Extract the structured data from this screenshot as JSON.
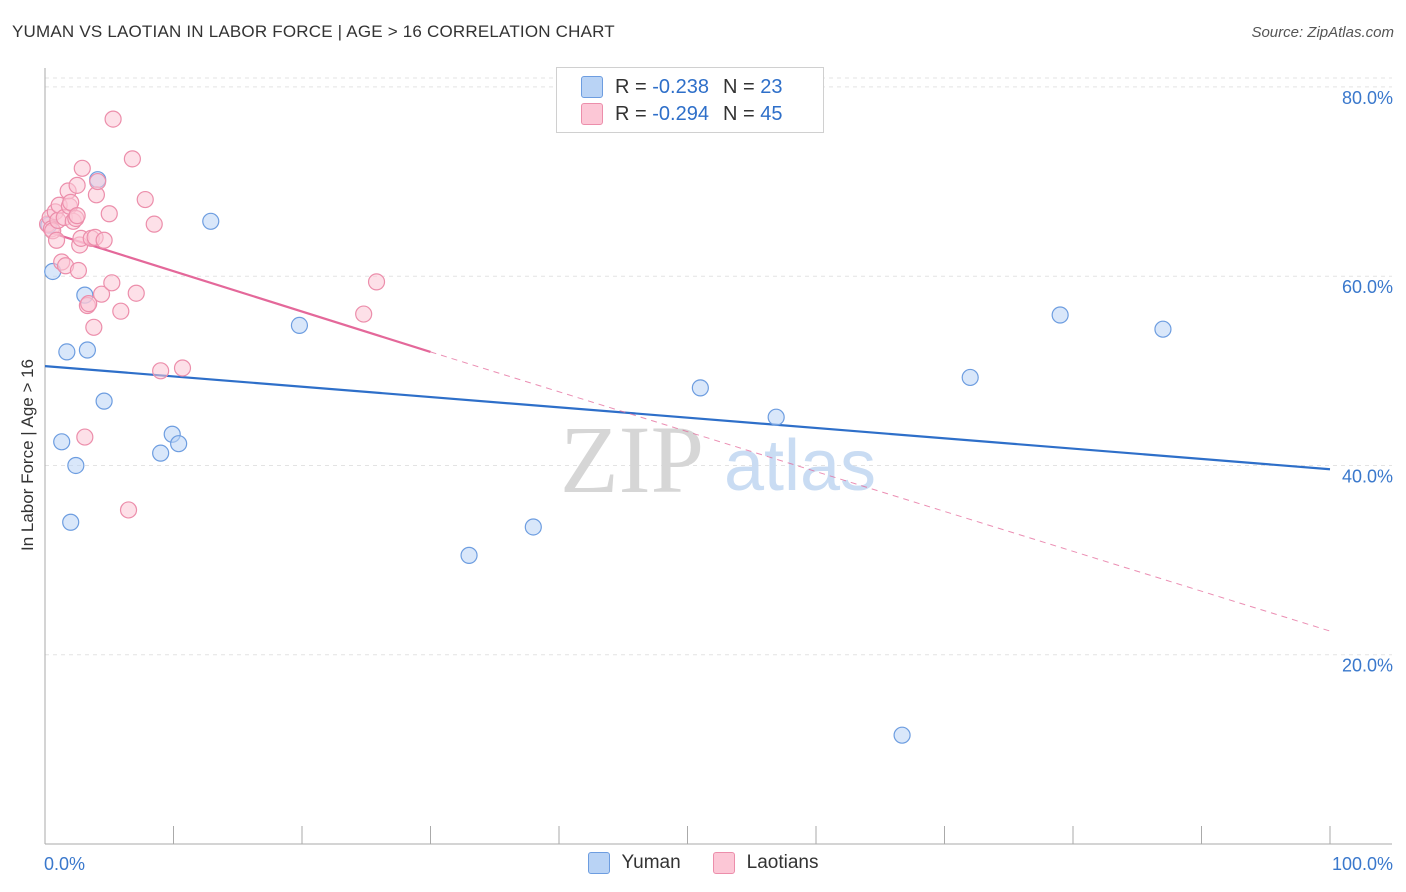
{
  "title": "YUMAN VS LAOTIAN IN LABOR FORCE | AGE > 16 CORRELATION CHART",
  "source": "Source: ZipAtlas.com",
  "watermark": {
    "zip": "ZIP",
    "atlas": "atlas"
  },
  "legend": {
    "r_label": "R =",
    "n_label": "N =",
    "rows": [
      {
        "r": "-0.238",
        "n": "23",
        "fill": "#b9d3f5",
        "stroke": "#6d9de0"
      },
      {
        "r": "-0.294",
        "n": "45",
        "fill": "#fcc7d6",
        "stroke": "#ec8eab"
      }
    ]
  },
  "chart_data": {
    "type": "scatter",
    "title": "YUMAN VS LAOTIAN IN LABOR FORCE | AGE > 16 CORRELATION CHART",
    "xlabel": "",
    "ylabel": "In Labor Force | Age > 16",
    "xlim": [
      0,
      100
    ],
    "ylim": [
      0,
      82
    ],
    "x_tick_labels": [
      "0.0%",
      "100.0%"
    ],
    "y_ticks": [
      20,
      40,
      60,
      80
    ],
    "y_tick_labels": [
      "20.0%",
      "40.0%",
      "60.0%",
      "80.0%"
    ],
    "grid": true,
    "colors": {
      "yuman": "#2e6fc9",
      "laotians": "#e4689a",
      "axis_text": "#3a78cc"
    },
    "series": [
      {
        "name": "Yuman",
        "fill": "#b9d3f5",
        "stroke": "#6d9de0",
        "points": [
          [
            0.6,
            60.5
          ],
          [
            1.3,
            42.5
          ],
          [
            1.7,
            52.0
          ],
          [
            2.0,
            34.0
          ],
          [
            2.4,
            40.0
          ],
          [
            3.1,
            58.0
          ],
          [
            3.3,
            52.2
          ],
          [
            4.1,
            70.2
          ],
          [
            4.6,
            46.8
          ],
          [
            9.0,
            41.3
          ],
          [
            9.9,
            43.3
          ],
          [
            10.4,
            42.3
          ],
          [
            12.9,
            65.8
          ],
          [
            19.8,
            54.8
          ],
          [
            33.0,
            30.5
          ],
          [
            38.0,
            33.5
          ],
          [
            51.0,
            48.2
          ],
          [
            56.9,
            45.1
          ],
          [
            66.7,
            11.5
          ],
          [
            72.0,
            49.3
          ],
          [
            79.0,
            55.9
          ],
          [
            87.0,
            54.4
          ],
          [
            0.3,
            65.4
          ]
        ]
      },
      {
        "name": "Laotians",
        "fill": "#fcc7d6",
        "stroke": "#ec8eab",
        "points": [
          [
            0.2,
            65.5
          ],
          [
            0.4,
            66.2
          ],
          [
            0.5,
            65.0
          ],
          [
            0.6,
            64.8
          ],
          [
            0.8,
            66.8
          ],
          [
            0.9,
            63.8
          ],
          [
            1.0,
            65.9
          ],
          [
            1.1,
            67.5
          ],
          [
            1.3,
            61.5
          ],
          [
            1.5,
            66.2
          ],
          [
            1.6,
            61.1
          ],
          [
            1.8,
            69.0
          ],
          [
            1.9,
            67.4
          ],
          [
            2.0,
            67.8
          ],
          [
            2.2,
            65.8
          ],
          [
            2.4,
            66.1
          ],
          [
            2.5,
            69.6
          ],
          [
            2.5,
            66.4
          ],
          [
            2.6,
            60.6
          ],
          [
            2.7,
            63.3
          ],
          [
            2.8,
            64.0
          ],
          [
            2.9,
            71.4
          ],
          [
            3.1,
            43.0
          ],
          [
            3.3,
            56.9
          ],
          [
            3.4,
            57.1
          ],
          [
            3.6,
            64.0
          ],
          [
            3.8,
            54.6
          ],
          [
            3.9,
            64.1
          ],
          [
            4.0,
            68.6
          ],
          [
            4.1,
            70.0
          ],
          [
            4.4,
            58.1
          ],
          [
            4.6,
            63.8
          ],
          [
            5.0,
            66.6
          ],
          [
            5.2,
            59.3
          ],
          [
            5.3,
            76.6
          ],
          [
            5.9,
            56.3
          ],
          [
            6.5,
            35.3
          ],
          [
            6.8,
            72.4
          ],
          [
            7.1,
            58.2
          ],
          [
            7.8,
            68.1
          ],
          [
            8.5,
            65.5
          ],
          [
            9.0,
            50.0
          ],
          [
            10.7,
            50.3
          ],
          [
            24.8,
            56.0
          ],
          [
            25.8,
            59.4
          ]
        ]
      }
    ],
    "trend_lines": [
      {
        "series": "Yuman",
        "x": [
          0,
          100
        ],
        "y": [
          50.5,
          39.6
        ],
        "style": "solid"
      },
      {
        "series": "Laotians",
        "x": [
          0,
          30
        ],
        "y": [
          64.8,
          52.0
        ],
        "style": "solid"
      },
      {
        "series": "Laotians",
        "x": [
          30,
          100
        ],
        "y": [
          52.0,
          22.5
        ],
        "style": "dashed"
      }
    ]
  }
}
